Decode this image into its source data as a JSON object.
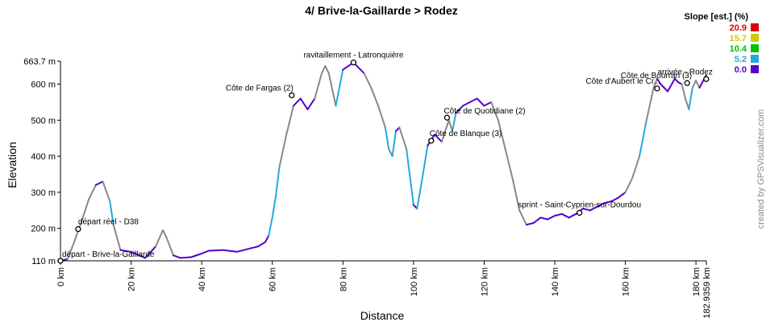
{
  "chart_data": {
    "type": "line",
    "title": "4/ Brive-la-Gaillarde > Rodez",
    "xlabel": "Distance",
    "ylabel": "Elevation",
    "xlim": [
      0,
      182.9359
    ],
    "ylim": [
      110,
      663.7
    ],
    "x_ticks": [
      {
        "value": 0,
        "label": "0 km"
      },
      {
        "value": 20,
        "label": "20 km"
      },
      {
        "value": 40,
        "label": "40 km"
      },
      {
        "value": 60,
        "label": "60 km"
      },
      {
        "value": 80,
        "label": "80 km"
      },
      {
        "value": 100,
        "label": "100 km"
      },
      {
        "value": 120,
        "label": "120 km"
      },
      {
        "value": 140,
        "label": "140 km"
      },
      {
        "value": 160,
        "label": "160 km"
      },
      {
        "value": 180,
        "label": "180 km"
      },
      {
        "value": 182.9359,
        "label": "182.9359 km"
      }
    ],
    "y_ticks": [
      {
        "value": 110,
        "label": "110 m"
      },
      {
        "value": 200,
        "label": "200 m"
      },
      {
        "value": 300,
        "label": "300 m"
      },
      {
        "value": 400,
        "label": "400 m"
      },
      {
        "value": 500,
        "label": "500 m"
      },
      {
        "value": 600,
        "label": "600 m"
      },
      {
        "value": 663.7,
        "label": "663.7 m"
      }
    ],
    "legend": {
      "title": "Slope [est.] (%)",
      "placement": "top-right",
      "items": [
        {
          "label": "20.9",
          "color": "#dd0000"
        },
        {
          "label": "15.7",
          "color": "#cccc00"
        },
        {
          "label": "10.4",
          "color": "#00c000"
        },
        {
          "label": "5.2",
          "color": "#22aadd"
        },
        {
          "label": "0.0",
          "color": "#5500cc"
        }
      ]
    },
    "series": [
      {
        "x": [
          0,
          2,
          4,
          6,
          8,
          10,
          12,
          14,
          15,
          17,
          20,
          24,
          27,
          29,
          30,
          32,
          34,
          37,
          40,
          42,
          46,
          50,
          54,
          56,
          58,
          59,
          60,
          61,
          62,
          64,
          66,
          68,
          70,
          72,
          74,
          75,
          76,
          78,
          80,
          83,
          86,
          88,
          90,
          92,
          93,
          94,
          95,
          96,
          98,
          100,
          101,
          102,
          104,
          106,
          108,
          110,
          111,
          112,
          114,
          116,
          118,
          120,
          122,
          124,
          126,
          128,
          130,
          132,
          134,
          136,
          138,
          140,
          142,
          144,
          146,
          148,
          150,
          152,
          154,
          156,
          158,
          160,
          162,
          164,
          166,
          168,
          169,
          170,
          171,
          172,
          174,
          175,
          176,
          177,
          178,
          179,
          180,
          181,
          182.9
        ],
        "y": [
          110,
          115,
          165,
          220,
          280,
          320,
          330,
          275,
          210,
          140,
          135,
          118,
          150,
          195,
          175,
          125,
          118,
          120,
          130,
          138,
          140,
          135,
          145,
          150,
          162,
          180,
          230,
          290,
          370,
          460,
          540,
          560,
          530,
          560,
          630,
          650,
          630,
          540,
          640,
          660,
          630,
          590,
          540,
          480,
          420,
          400,
          470,
          480,
          420,
          265,
          255,
          310,
          430,
          460,
          440,
          500,
          470,
          520,
          540,
          550,
          560,
          540,
          550,
          500,
          420,
          340,
          250,
          210,
          215,
          230,
          225,
          235,
          240,
          230,
          240,
          255,
          250,
          260,
          270,
          275,
          285,
          300,
          340,
          400,
          500,
          590,
          615,
          600,
          590,
          580,
          615,
          605,
          600,
          560,
          530,
          590,
          610,
          590,
          625
        ]
      }
    ],
    "annotations": [
      {
        "x": 0,
        "y": 110,
        "text": "départ - Brive-la-Gaillarde"
      },
      {
        "x": 5,
        "y": 198,
        "text": "départ réel - D38"
      },
      {
        "x": 65.5,
        "y": 569,
        "text": "Côte de Fargas (2)"
      },
      {
        "x": 83,
        "y": 660,
        "text": "ravitaillement - Latronquière"
      },
      {
        "x": 105,
        "y": 443,
        "text": "Côte de Blanque (3)"
      },
      {
        "x": 109.5,
        "y": 507,
        "text": "Côte de Quotidiane (2)"
      },
      {
        "x": 147,
        "y": 243,
        "text": "sprint - Saint-Cyprien-sur-Dourdou"
      },
      {
        "x": 169,
        "y": 588,
        "text": "Côte d'Aubert le Cr..."
      },
      {
        "x": 177.5,
        "y": 603,
        "text": "Côte de Bourran (3)"
      },
      {
        "x": 182.9,
        "y": 614,
        "text": "arrivée - Rodez"
      }
    ],
    "grid": false
  },
  "credit": "created by GPSVisualizer.com"
}
